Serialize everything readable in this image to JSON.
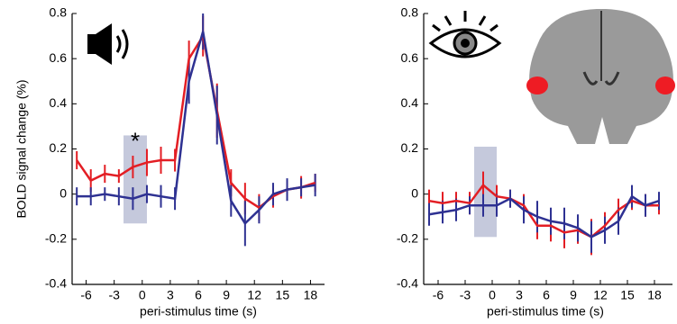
{
  "chart_data": [
    {
      "type": "line",
      "ylabel": "BOLD signal change (%)",
      "xlabel": "peri-stimulus time (s)",
      "annotation": "*",
      "x": [
        -7,
        -5.5,
        -4,
        -2.5,
        -1,
        0.5,
        2,
        3.5,
        5,
        6.5,
        8,
        9.5,
        11,
        12.5,
        14,
        15.5,
        17,
        18.5
      ],
      "xlim": [
        -7.5,
        19.5
      ],
      "xticks": [
        -6,
        -3,
        0,
        3,
        6,
        9,
        12,
        15,
        18
      ],
      "ylim": [
        -0.4,
        0.8
      ],
      "yticks": [
        -0.4,
        -0.2,
        0,
        0.2,
        0.4,
        0.6,
        0.8
      ],
      "highlight": {
        "x": [
          -2,
          0.5
        ],
        "y": [
          -0.13,
          0.26
        ]
      },
      "series": [
        {
          "name": "red",
          "color": "#e31e24",
          "values": [
            0.15,
            0.06,
            0.09,
            0.08,
            0.12,
            0.14,
            0.15,
            0.15,
            0.6,
            0.7,
            0.37,
            0.05,
            -0.02,
            -0.06,
            -0.01,
            0.02,
            0.03,
            0.05
          ],
          "errors": [
            0.04,
            0.05,
            0.04,
            0.03,
            0.05,
            0.06,
            0.06,
            0.05,
            0.08,
            0.09,
            0.12,
            0.06,
            0.07,
            0.06,
            0.05,
            0.04,
            0.05,
            0.04
          ]
        },
        {
          "name": "blue",
          "color": "#2e3192",
          "values": [
            -0.01,
            -0.01,
            0,
            -0.01,
            -0.02,
            0,
            -0.01,
            -0.02,
            0.5,
            0.72,
            0.35,
            -0.03,
            -0.13,
            -0.07,
            0,
            0.02,
            0.03,
            0.04
          ],
          "errors": [
            0.04,
            0.04,
            0.03,
            0.04,
            0.05,
            0.04,
            0.05,
            0.05,
            0.1,
            0.08,
            0.13,
            0.07,
            0.1,
            0.06,
            0.05,
            0.05,
            0.04,
            0.05
          ]
        }
      ]
    },
    {
      "type": "line",
      "xlabel": "peri-stimulus time (s)",
      "x": [
        -7,
        -5.5,
        -4,
        -2.5,
        -1,
        0.5,
        2,
        3.5,
        5,
        6.5,
        8,
        9.5,
        11,
        12.5,
        14,
        15.5,
        17,
        18.5
      ],
      "xlim": [
        -7.6,
        20
      ],
      "xticks": [
        -6,
        -3,
        0,
        3,
        6,
        9,
        12,
        15,
        18
      ],
      "ylim": [
        -0.4,
        0.8
      ],
      "yticks": [
        -0.4,
        -0.2,
        0,
        0.2,
        0.4,
        0.6,
        0.8
      ],
      "highlight": {
        "x": [
          -2,
          0.5
        ],
        "y": [
          -0.19,
          0.21
        ]
      },
      "series": [
        {
          "name": "red",
          "color": "#e31e24",
          "values": [
            -0.03,
            -0.04,
            -0.03,
            -0.04,
            0.04,
            -0.01,
            -0.02,
            -0.05,
            -0.14,
            -0.14,
            -0.17,
            -0.16,
            -0.19,
            -0.14,
            -0.07,
            -0.03,
            -0.05,
            -0.05
          ],
          "errors": [
            0.05,
            0.05,
            0.04,
            0.05,
            0.06,
            0.05,
            0.04,
            0.05,
            0.06,
            0.07,
            0.07,
            0.06,
            0.08,
            0.06,
            0.05,
            0.04,
            0.05,
            0.04
          ]
        },
        {
          "name": "blue",
          "color": "#2e3192",
          "values": [
            -0.09,
            -0.08,
            -0.07,
            -0.05,
            -0.05,
            -0.05,
            -0.02,
            -0.07,
            -0.1,
            -0.12,
            -0.13,
            -0.15,
            -0.19,
            -0.16,
            -0.12,
            -0.01,
            -0.05,
            -0.03
          ],
          "errors": [
            0.05,
            0.05,
            0.05,
            0.04,
            0.05,
            0.05,
            0.04,
            0.06,
            0.07,
            0.06,
            0.07,
            0.06,
            0.07,
            0.06,
            0.06,
            0.05,
            0.05,
            0.04
          ]
        }
      ]
    }
  ]
}
